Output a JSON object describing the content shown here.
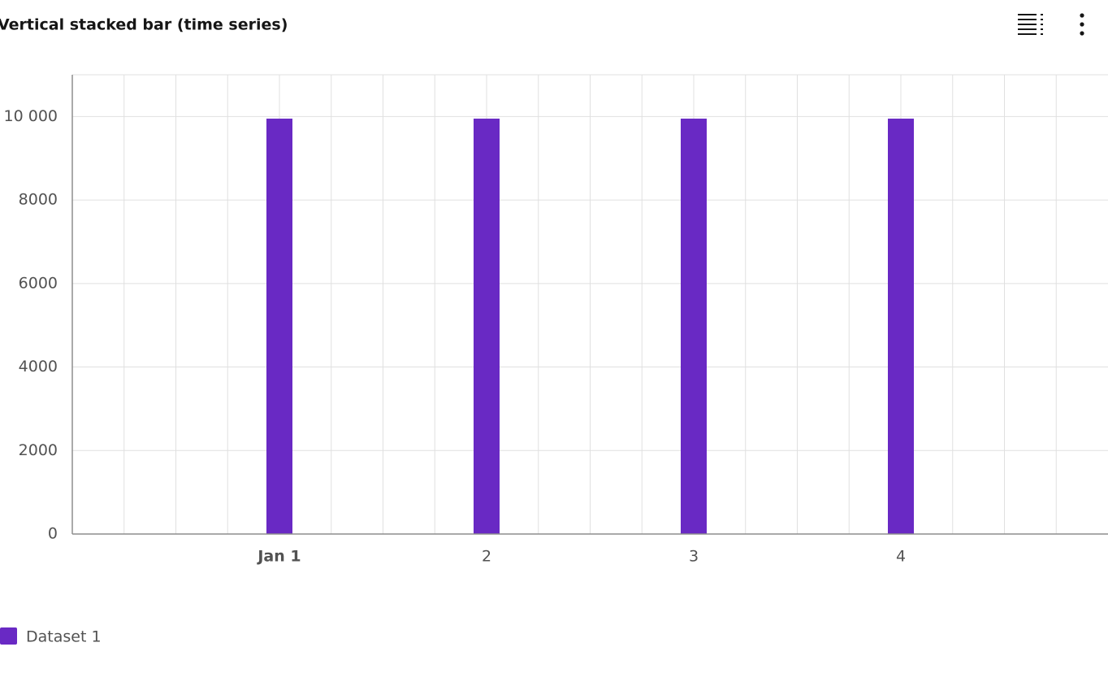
{
  "chart_data": {
    "type": "bar",
    "stacked": true,
    "title": "Vertical stacked bar (time series)",
    "x": [
      1,
      2,
      3,
      4
    ],
    "xlim": [
      0,
      5
    ],
    "xticks": [
      {
        "value": 1,
        "label": "Jan 1"
      },
      2,
      3,
      4
    ],
    "series": [
      {
        "name": "Dataset 1",
        "color": "#6929c4",
        "values": [
          9950,
          9950,
          9950,
          9950
        ]
      }
    ],
    "ylim": [
      0,
      11000
    ],
    "yticks": [
      0,
      2000,
      4000,
      6000,
      8000,
      {
        "value": 10000,
        "label": "10 000"
      }
    ],
    "grid": true
  }
}
